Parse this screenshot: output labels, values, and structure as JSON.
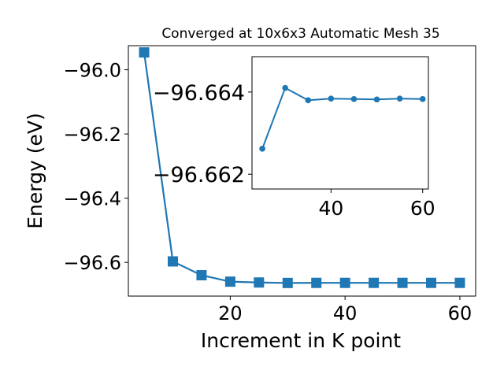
{
  "chart_data": [
    {
      "type": "line",
      "title": "Converged at 10x6x3 Automatic Mesh 35",
      "xlabel": "Increment in K point",
      "ylabel": "Energy (eV)",
      "xlim": [
        2.25,
        62.75
      ],
      "ylim": [
        -96.705,
        -95.925
      ],
      "xticks": [
        "20",
        "40",
        "60"
      ],
      "yticks": [
        "−96.0",
        "−96.2",
        "−96.4",
        "−96.6"
      ],
      "marker": "square",
      "color": "#1f77b4",
      "series": [
        {
          "x": [
            5,
            10,
            15,
            20,
            25,
            30,
            35,
            40,
            45,
            50,
            55,
            60
          ],
          "y": [
            -95.946,
            -96.597,
            -96.64,
            -96.66,
            -96.6626,
            -96.6641,
            -96.6638,
            -96.6638,
            -96.6638,
            -96.6638,
            -96.6638,
            -96.6638
          ]
        }
      ]
    },
    {
      "type": "line",
      "inset": true,
      "xlim": [
        22.75,
        61.25
      ],
      "ylim": [
        -96.66164,
        -96.66486
      ],
      "xticks": [
        "40",
        "60"
      ],
      "yticks": [
        "−96.664",
        "−96.662"
      ],
      "marker": "circle",
      "color": "#1f77b4",
      "series": [
        {
          "x": [
            25,
            30,
            35,
            40,
            45,
            50,
            55,
            60
          ],
          "y": [
            -96.66262,
            -96.6641,
            -96.6638,
            -96.66384,
            -96.66383,
            -96.66382,
            -96.66384,
            -96.66383
          ]
        }
      ]
    }
  ]
}
